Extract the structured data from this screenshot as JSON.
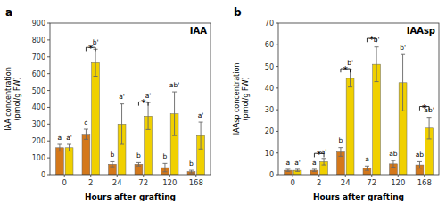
{
  "chart_data": [
    {
      "type": "bar",
      "title": "IAA",
      "panel_label": "a",
      "x_label": "Hours after grafting",
      "y_label": "IAA concentration\n(pmol/g FW)",
      "categories": [
        "0",
        "2",
        "24",
        "72",
        "120",
        "168"
      ],
      "series": [
        {
          "color": "#D4781A",
          "values": [
            160,
            240,
            62,
            62,
            42,
            18
          ],
          "errors": [
            20,
            30,
            15,
            10,
            25,
            8
          ],
          "annotations": [
            "a",
            "c",
            "b",
            "b",
            "b",
            "b"
          ]
        },
        {
          "color": "#F0D000",
          "values": [
            160,
            665,
            300,
            348,
            362,
            232
          ],
          "errors": [
            20,
            80,
            120,
            80,
            130,
            80
          ],
          "annotations": [
            "a'",
            "b'",
            "a'",
            "a'",
            "ab'",
            "a'"
          ]
        }
      ],
      "brackets": [
        {
          "category": "2",
          "y": 756,
          "text": "*"
        },
        {
          "category": "72",
          "y": 432,
          "text": "*"
        }
      ],
      "ylim": [
        0,
        900
      ],
      "yticks": [
        0,
        100,
        200,
        300,
        400,
        500,
        600,
        700,
        800,
        900
      ],
      "grid": false
    },
    {
      "type": "bar",
      "title": "IAAsp",
      "panel_label": "b",
      "x_label": "Hours after grafting",
      "y_label": "IAAsp concentration\n(pmol/g FW)",
      "categories": [
        "0",
        "2",
        "24",
        "72",
        "120",
        "168"
      ],
      "series": [
        {
          "color": "#D4781A",
          "values": [
            2,
            2,
            10.5,
            3,
            5,
            4.5
          ],
          "errors": [
            0.5,
            0.5,
            2,
            1,
            1.5,
            1.5
          ],
          "annotations": [
            "a",
            "a",
            "b",
            "a",
            "ab",
            "ab"
          ]
        },
        {
          "color": "#F0D000",
          "values": [
            2,
            6,
            44.5,
            51,
            42.5,
            21.5
          ],
          "errors": [
            0.5,
            1.5,
            4,
            8,
            13,
            5
          ],
          "annotations": [
            "a'",
            "a'",
            "b'",
            "b'",
            "b'",
            "ab'"
          ]
        }
      ],
      "brackets": [
        {
          "category": "2",
          "y": 9.8,
          "text": "*"
        },
        {
          "category": "24",
          "y": 49,
          "text": "*"
        },
        {
          "category": "72",
          "y": 63,
          "text": "*"
        },
        {
          "category": "168",
          "y": 31.5,
          "text": "*"
        }
      ],
      "ylim": [
        0,
        70
      ],
      "yticks": [
        0,
        10,
        20,
        30,
        40,
        50,
        60,
        70
      ],
      "grid": false
    }
  ]
}
